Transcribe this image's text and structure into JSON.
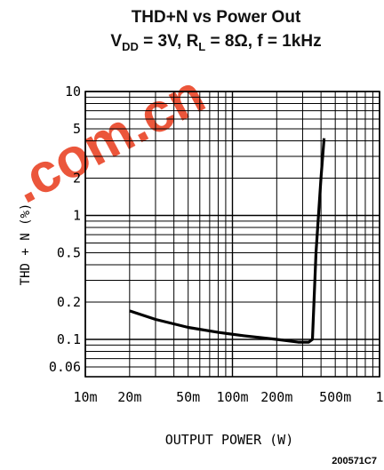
{
  "chart_data": {
    "type": "line",
    "title": "THD+N vs Power Out",
    "subtitle_parts": {
      "vdd_var": "V",
      "vdd_sub": "DD",
      "vdd_val": " = 3V, ",
      "rl_var": "R",
      "rl_sub": "L",
      "rl_val": " = 8Ω, f = 1kHz"
    },
    "xlabel": "OUTPUT POWER (W)",
    "ylabel": "THD + N (%)",
    "x_scale": "log",
    "y_scale": "log",
    "xlim": [
      0.01,
      1
    ],
    "ylim": [
      0.05,
      10
    ],
    "x_ticks": [
      {
        "value": 0.01,
        "label": "10m"
      },
      {
        "value": 0.02,
        "label": "20m"
      },
      {
        "value": 0.05,
        "label": "50m"
      },
      {
        "value": 0.1,
        "label": "100m"
      },
      {
        "value": 0.2,
        "label": "200m"
      },
      {
        "value": 0.5,
        "label": "500m"
      },
      {
        "value": 1,
        "label": "1"
      }
    ],
    "y_ticks": [
      {
        "value": 10,
        "label": "10"
      },
      {
        "value": 5,
        "label": "5"
      },
      {
        "value": 2,
        "label": "2"
      },
      {
        "value": 1,
        "label": "1"
      },
      {
        "value": 0.5,
        "label": "0.5"
      },
      {
        "value": 0.2,
        "label": "0.2"
      },
      {
        "value": 0.1,
        "label": "0.1"
      },
      {
        "value": 0.06,
        "label": "0.06"
      }
    ],
    "grid": true,
    "series": [
      {
        "x": [
          0.02,
          0.03,
          0.05,
          0.08,
          0.12,
          0.2,
          0.28,
          0.33,
          0.35,
          0.37,
          0.4,
          0.42
        ],
        "y": [
          0.17,
          0.145,
          0.125,
          0.114,
          0.107,
          0.1,
          0.095,
          0.095,
          0.1,
          0.5,
          2,
          4.2
        ]
      }
    ]
  },
  "figure_id": "200571C7",
  "style": {
    "line_color": "#000000",
    "grid_color": "#000000",
    "watermark_color": "#e8391a"
  }
}
